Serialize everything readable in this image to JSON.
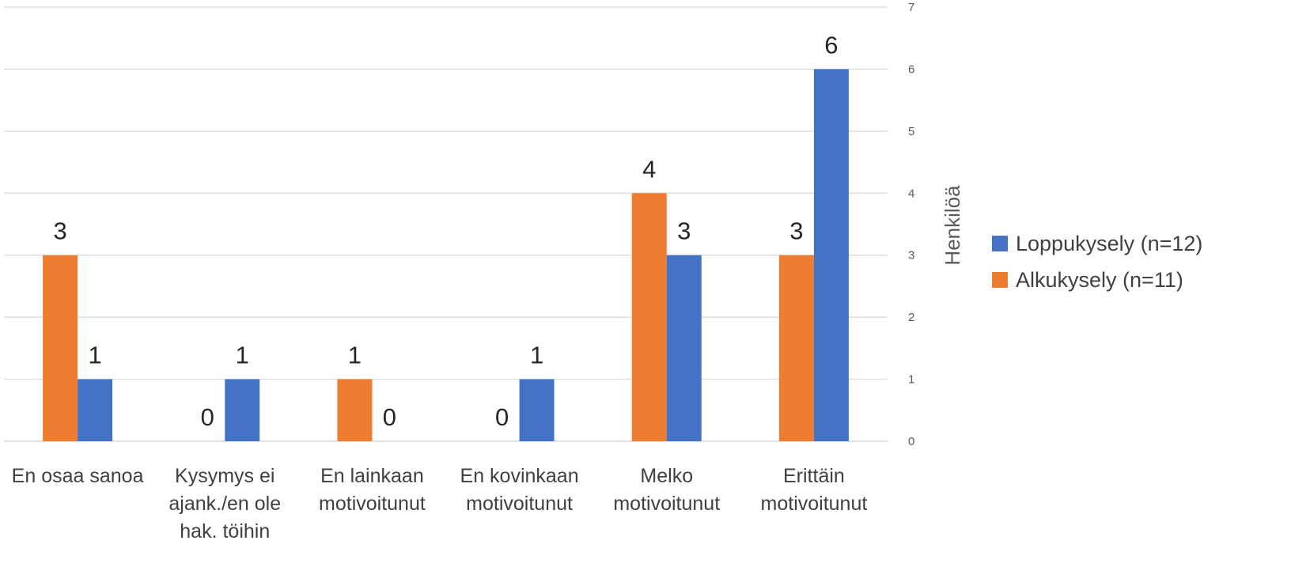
{
  "chart_data": {
    "type": "bar",
    "categories": [
      [
        "En osaa sanoa"
      ],
      [
        "Kysymys ei",
        "ajank./en ole",
        "hak. töihin"
      ],
      [
        "En lainkaan",
        "motivoitunut"
      ],
      [
        "En kovinkaan",
        "motivoitunut"
      ],
      [
        "Melko",
        "motivoitunut"
      ],
      [
        "Erittäin",
        "motivoitunut"
      ]
    ],
    "series": [
      {
        "name": "Alkukysely (n=11)",
        "color": "#ED7D31",
        "values": [
          3,
          0,
          1,
          0,
          4,
          3
        ]
      },
      {
        "name": "Loppukysely (n=12)",
        "color": "#4472C4",
        "values": [
          1,
          1,
          0,
          1,
          3,
          6
        ]
      }
    ],
    "ylabel": "Henkilöä",
    "ylim": [
      0,
      7
    ],
    "yticks": [
      0,
      1,
      2,
      3,
      4,
      5,
      6,
      7
    ],
    "y_axis_side": "right",
    "grid": true,
    "legend_position": "right",
    "legend_order": [
      "Loppukysely (n=12)",
      "Alkukysely (n=11)"
    ],
    "data_labels": true
  }
}
